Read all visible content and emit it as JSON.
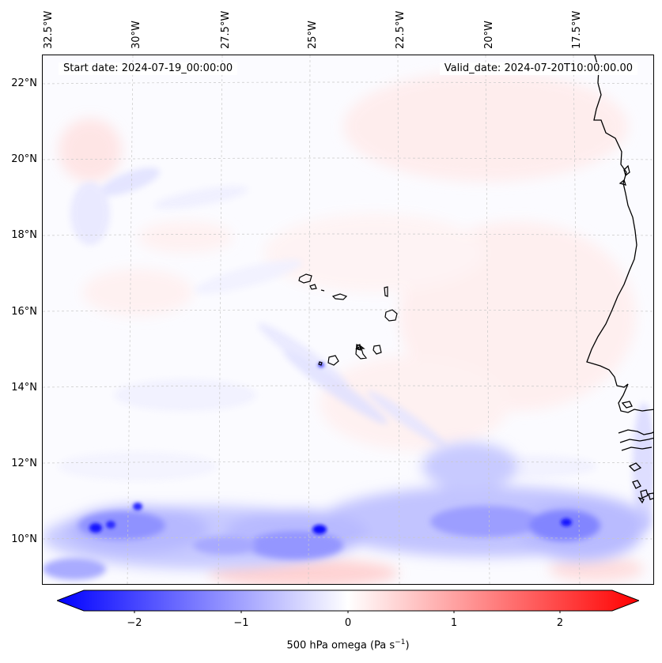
{
  "map": {
    "start_date": "Start date: 2024-07-19_00:00:00",
    "valid_date": "Valid_date: 2024-07-20T10:00:00.00",
    "lon_labels": [
      "32.5°W",
      "30°W",
      "27.5°W",
      "25°W",
      "22.5°W",
      "20°W",
      "17.5°W"
    ],
    "lat_labels": [
      "22°N",
      "20°N",
      "18°N",
      "16°N",
      "14°N",
      "12°N",
      "10°N"
    ],
    "extent": {
      "lon": [
        -32.5,
        -15.5
      ],
      "lat": [
        9,
        22.5
      ]
    },
    "field": "500 hPa omega",
    "features": [
      "Cape Verde islands",
      "West African coastline"
    ]
  },
  "colorbar": {
    "ticks": [
      "−2",
      "−1",
      "0",
      "1",
      "2"
    ],
    "label_main": "500 hPa omega (Pa s",
    "label_sup": "−1",
    "label_end": ")",
    "range": [
      -2.6,
      2.6
    ],
    "colors": {
      "min": "#0000ff",
      "mid": "#ffffff",
      "max": "#ff0000"
    }
  }
}
